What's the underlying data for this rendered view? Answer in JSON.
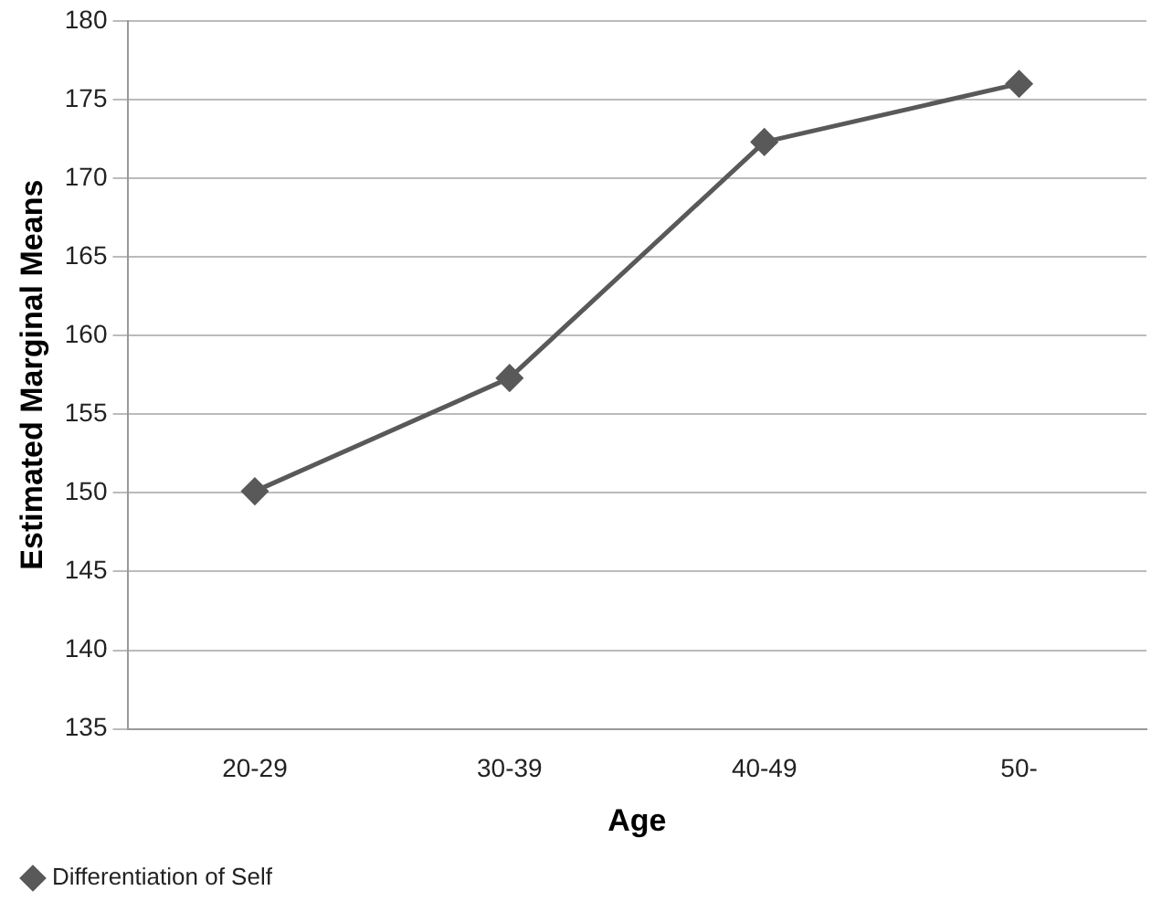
{
  "chart_data": {
    "type": "line",
    "xlabel": "Age",
    "ylabel": "Estimated Marginal Means",
    "categories": [
      "20-29",
      "30-39",
      "40-49",
      "50-"
    ],
    "series": [
      {
        "name": "Differentiation of Self",
        "color": "#595959",
        "values": [
          150.1,
          157.3,
          172.3,
          176.0
        ]
      }
    ],
    "ylim": [
      135,
      180
    ],
    "yticks": [
      135,
      140,
      145,
      150,
      155,
      160,
      165,
      170,
      175,
      180
    ],
    "grid": "y",
    "legend": "bottom left",
    "marker": "diamond",
    "line_style": "solid"
  }
}
